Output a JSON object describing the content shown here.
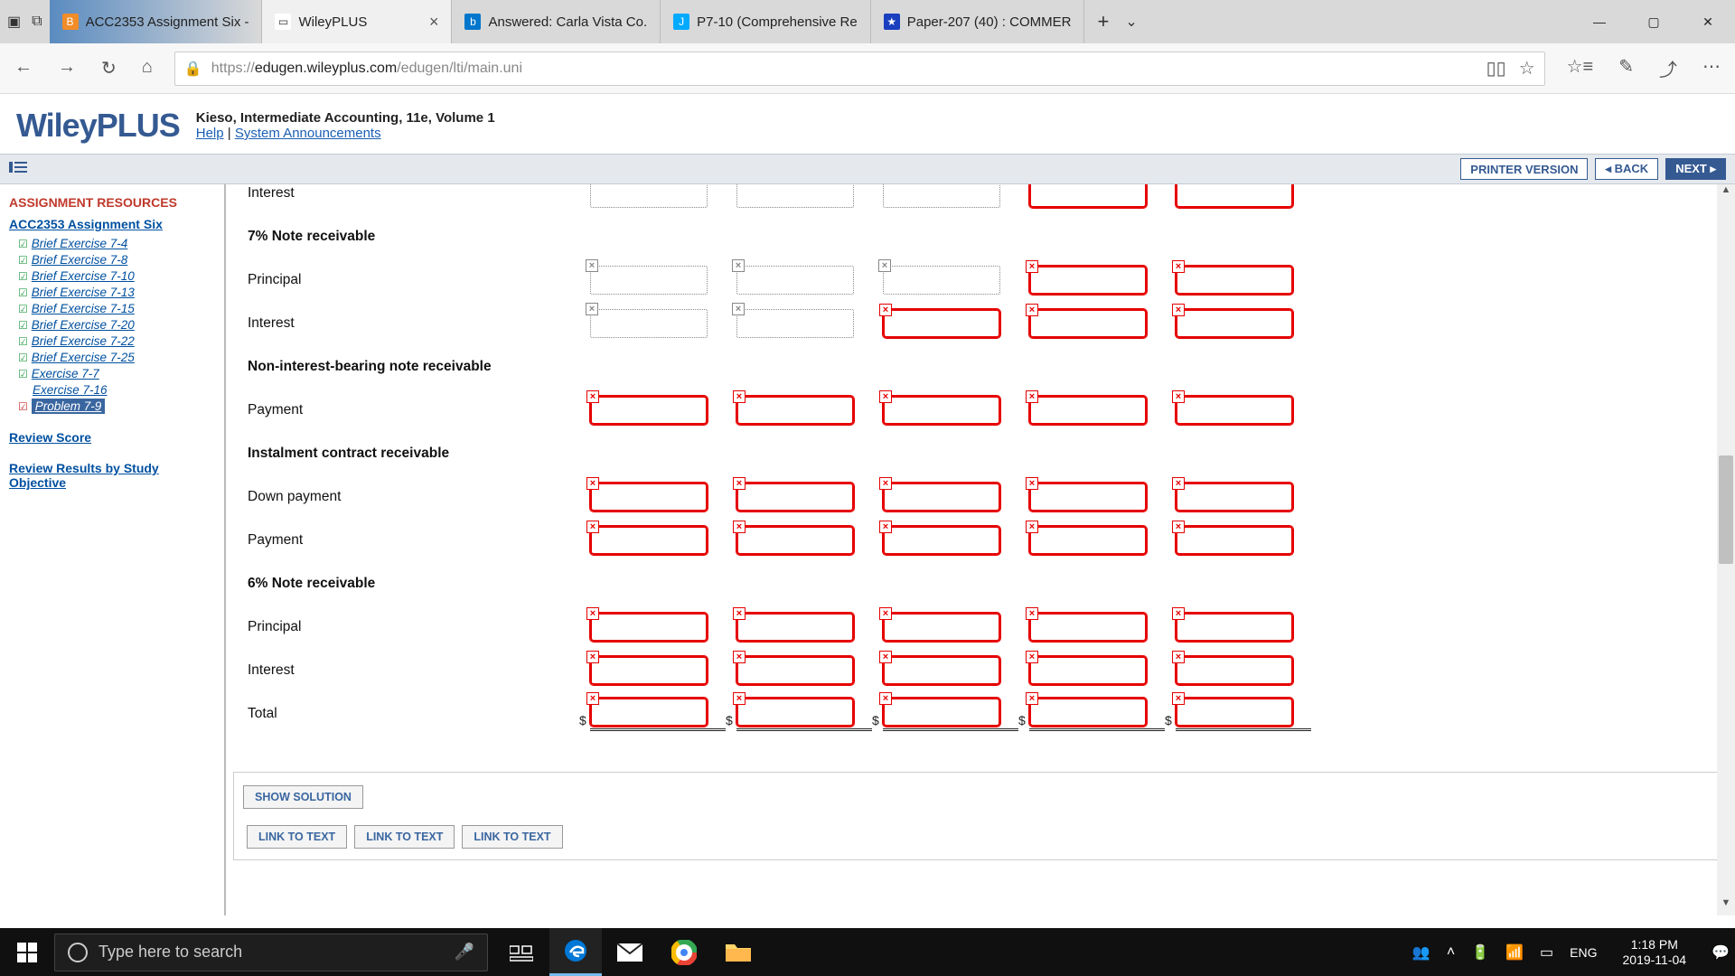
{
  "tabs": [
    {
      "label": "ACC2353 Assignment Six -",
      "favicon_bg": "#f28c28",
      "favicon_text": "B",
      "favicon_color": "#fff"
    },
    {
      "label": "WileyPLUS",
      "favicon_bg": "#fff",
      "favicon_text": "▭",
      "favicon_color": "#333",
      "active": true
    },
    {
      "label": "Answered: Carla Vista Co.",
      "favicon_bg": "#0077cc",
      "favicon_text": "b",
      "favicon_color": "#fff"
    },
    {
      "label": "P7-10 (Comprehensive Re",
      "favicon_bg": "#00aaff",
      "favicon_text": "J",
      "favicon_color": "#fff"
    },
    {
      "label": "Paper-207 (40) : COMMER",
      "favicon_bg": "#1a3fbf",
      "favicon_text": "★",
      "favicon_color": "#fff"
    }
  ],
  "url_prefix": "https://",
  "url_host": "edugen.wileyplus.com",
  "url_path": "/edugen/lti/main.uni",
  "wiley_logo_a": "Wiley",
  "wiley_logo_b": "PLUS",
  "course_title": "Kieso, Intermediate Accounting, 11e, Volume 1",
  "help_link": "Help",
  "sys_ann_link": "System Announcements",
  "printer_version": "PRINTER VERSION",
  "back_btn": "◂ BACK",
  "next_btn": "NEXT ▸",
  "sidebar": {
    "heading": "ASSIGNMENT RESOURCES",
    "assignment": "ACC2353 Assignment Six",
    "items": [
      {
        "label": "Brief Exercise 7-4",
        "check": true
      },
      {
        "label": "Brief Exercise 7-8",
        "check": true
      },
      {
        "label": "Brief Exercise 7-10",
        "check": true
      },
      {
        "label": "Brief Exercise 7-13",
        "check": true
      },
      {
        "label": "Brief Exercise 7-15",
        "check": true
      },
      {
        "label": "Brief Exercise 7-20",
        "check": true
      },
      {
        "label": "Brief Exercise 7-22",
        "check": true
      },
      {
        "label": "Brief Exercise 7-25",
        "check": true
      },
      {
        "label": "Exercise 7-7",
        "check": true
      },
      {
        "label": "Exercise 7-16",
        "check": false
      },
      {
        "label": "Problem 7-9",
        "check": true,
        "redcheck": true,
        "selected": true
      }
    ],
    "review_score": "Review Score",
    "review_results": "Review Results by Study Objective"
  },
  "rows": [
    {
      "label": "Interest",
      "bold": false,
      "cells": [
        "dotted-nox",
        "dotted",
        "dotted",
        "red-nox",
        "red-nox"
      ],
      "partial_top": true
    },
    {
      "label": "7% Note receivable",
      "bold": true,
      "cells": null
    },
    {
      "label": "Principal",
      "bold": false,
      "cells": [
        "dotted-x",
        "dotted-x",
        "dotted-x",
        "red",
        "red"
      ]
    },
    {
      "label": "Interest",
      "bold": false,
      "cells": [
        "dotted-x",
        "dotted-x",
        "red",
        "red",
        "red"
      ]
    },
    {
      "label": "Non-interest-bearing note receivable",
      "bold": true,
      "cells": null
    },
    {
      "label": "Payment",
      "bold": false,
      "cells": [
        "red",
        "red",
        "red",
        "red",
        "red"
      ]
    },
    {
      "label": "Instalment contract receivable",
      "bold": true,
      "cells": null
    },
    {
      "label": "Down payment",
      "bold": false,
      "cells": [
        "red",
        "red",
        "red",
        "red",
        "red"
      ]
    },
    {
      "label": "Payment",
      "bold": false,
      "cells": [
        "red",
        "red",
        "red",
        "red",
        "red"
      ]
    },
    {
      "label": "6% Note receivable",
      "bold": true,
      "cells": null
    },
    {
      "label": "Principal",
      "bold": false,
      "cells": [
        "red",
        "red",
        "red",
        "red",
        "red"
      ]
    },
    {
      "label": "Interest",
      "bold": false,
      "cells": [
        "red",
        "red",
        "red",
        "red",
        "red"
      ]
    },
    {
      "label": "Total",
      "bold": false,
      "cells": [
        "red",
        "red",
        "red",
        "red",
        "red"
      ],
      "dollar": true,
      "underline": true
    }
  ],
  "show_solution": "SHOW SOLUTION",
  "link_to_text": "LINK TO TEXT",
  "taskbar": {
    "search_placeholder": "Type here to search",
    "lang": "ENG",
    "time": "1:18 PM",
    "date": "2019-11-04"
  }
}
